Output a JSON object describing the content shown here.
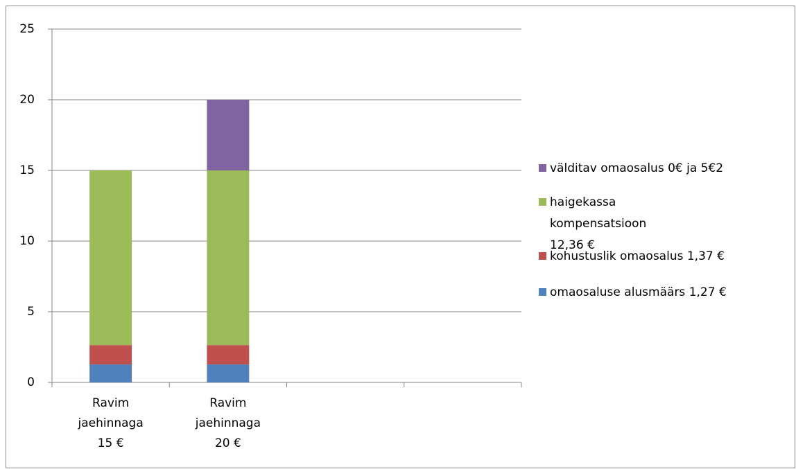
{
  "chart_data": {
    "type": "stacked_bar",
    "categories": [
      "Ravim jaehinnaga 15 €",
      "Ravim jaehinnaga 20 €",
      null,
      null
    ],
    "series": [
      {
        "name": "omaosaluse alusmäärs 1,27 €",
        "color": "#4f81bd",
        "values": [
          1.27,
          1.27,
          null,
          null
        ]
      },
      {
        "name": "kohustuslik omaosalus 1,37 €",
        "color": "#c0504d",
        "values": [
          1.37,
          1.37,
          null,
          null
        ]
      },
      {
        "name": "haigekassa kompensatsioon 12,36 €",
        "color": "#9bbb59",
        "values": [
          12.36,
          12.36,
          null,
          null
        ]
      },
      {
        "name": "välditav omaosalus 0€ ja 5€2",
        "color": "#8064a2",
        "values": [
          0,
          5,
          null,
          null
        ]
      }
    ],
    "ylim": [
      0,
      25
    ],
    "yticks": [
      0,
      5,
      10,
      15,
      20,
      25
    ],
    "grid": true,
    "legend": "right"
  }
}
